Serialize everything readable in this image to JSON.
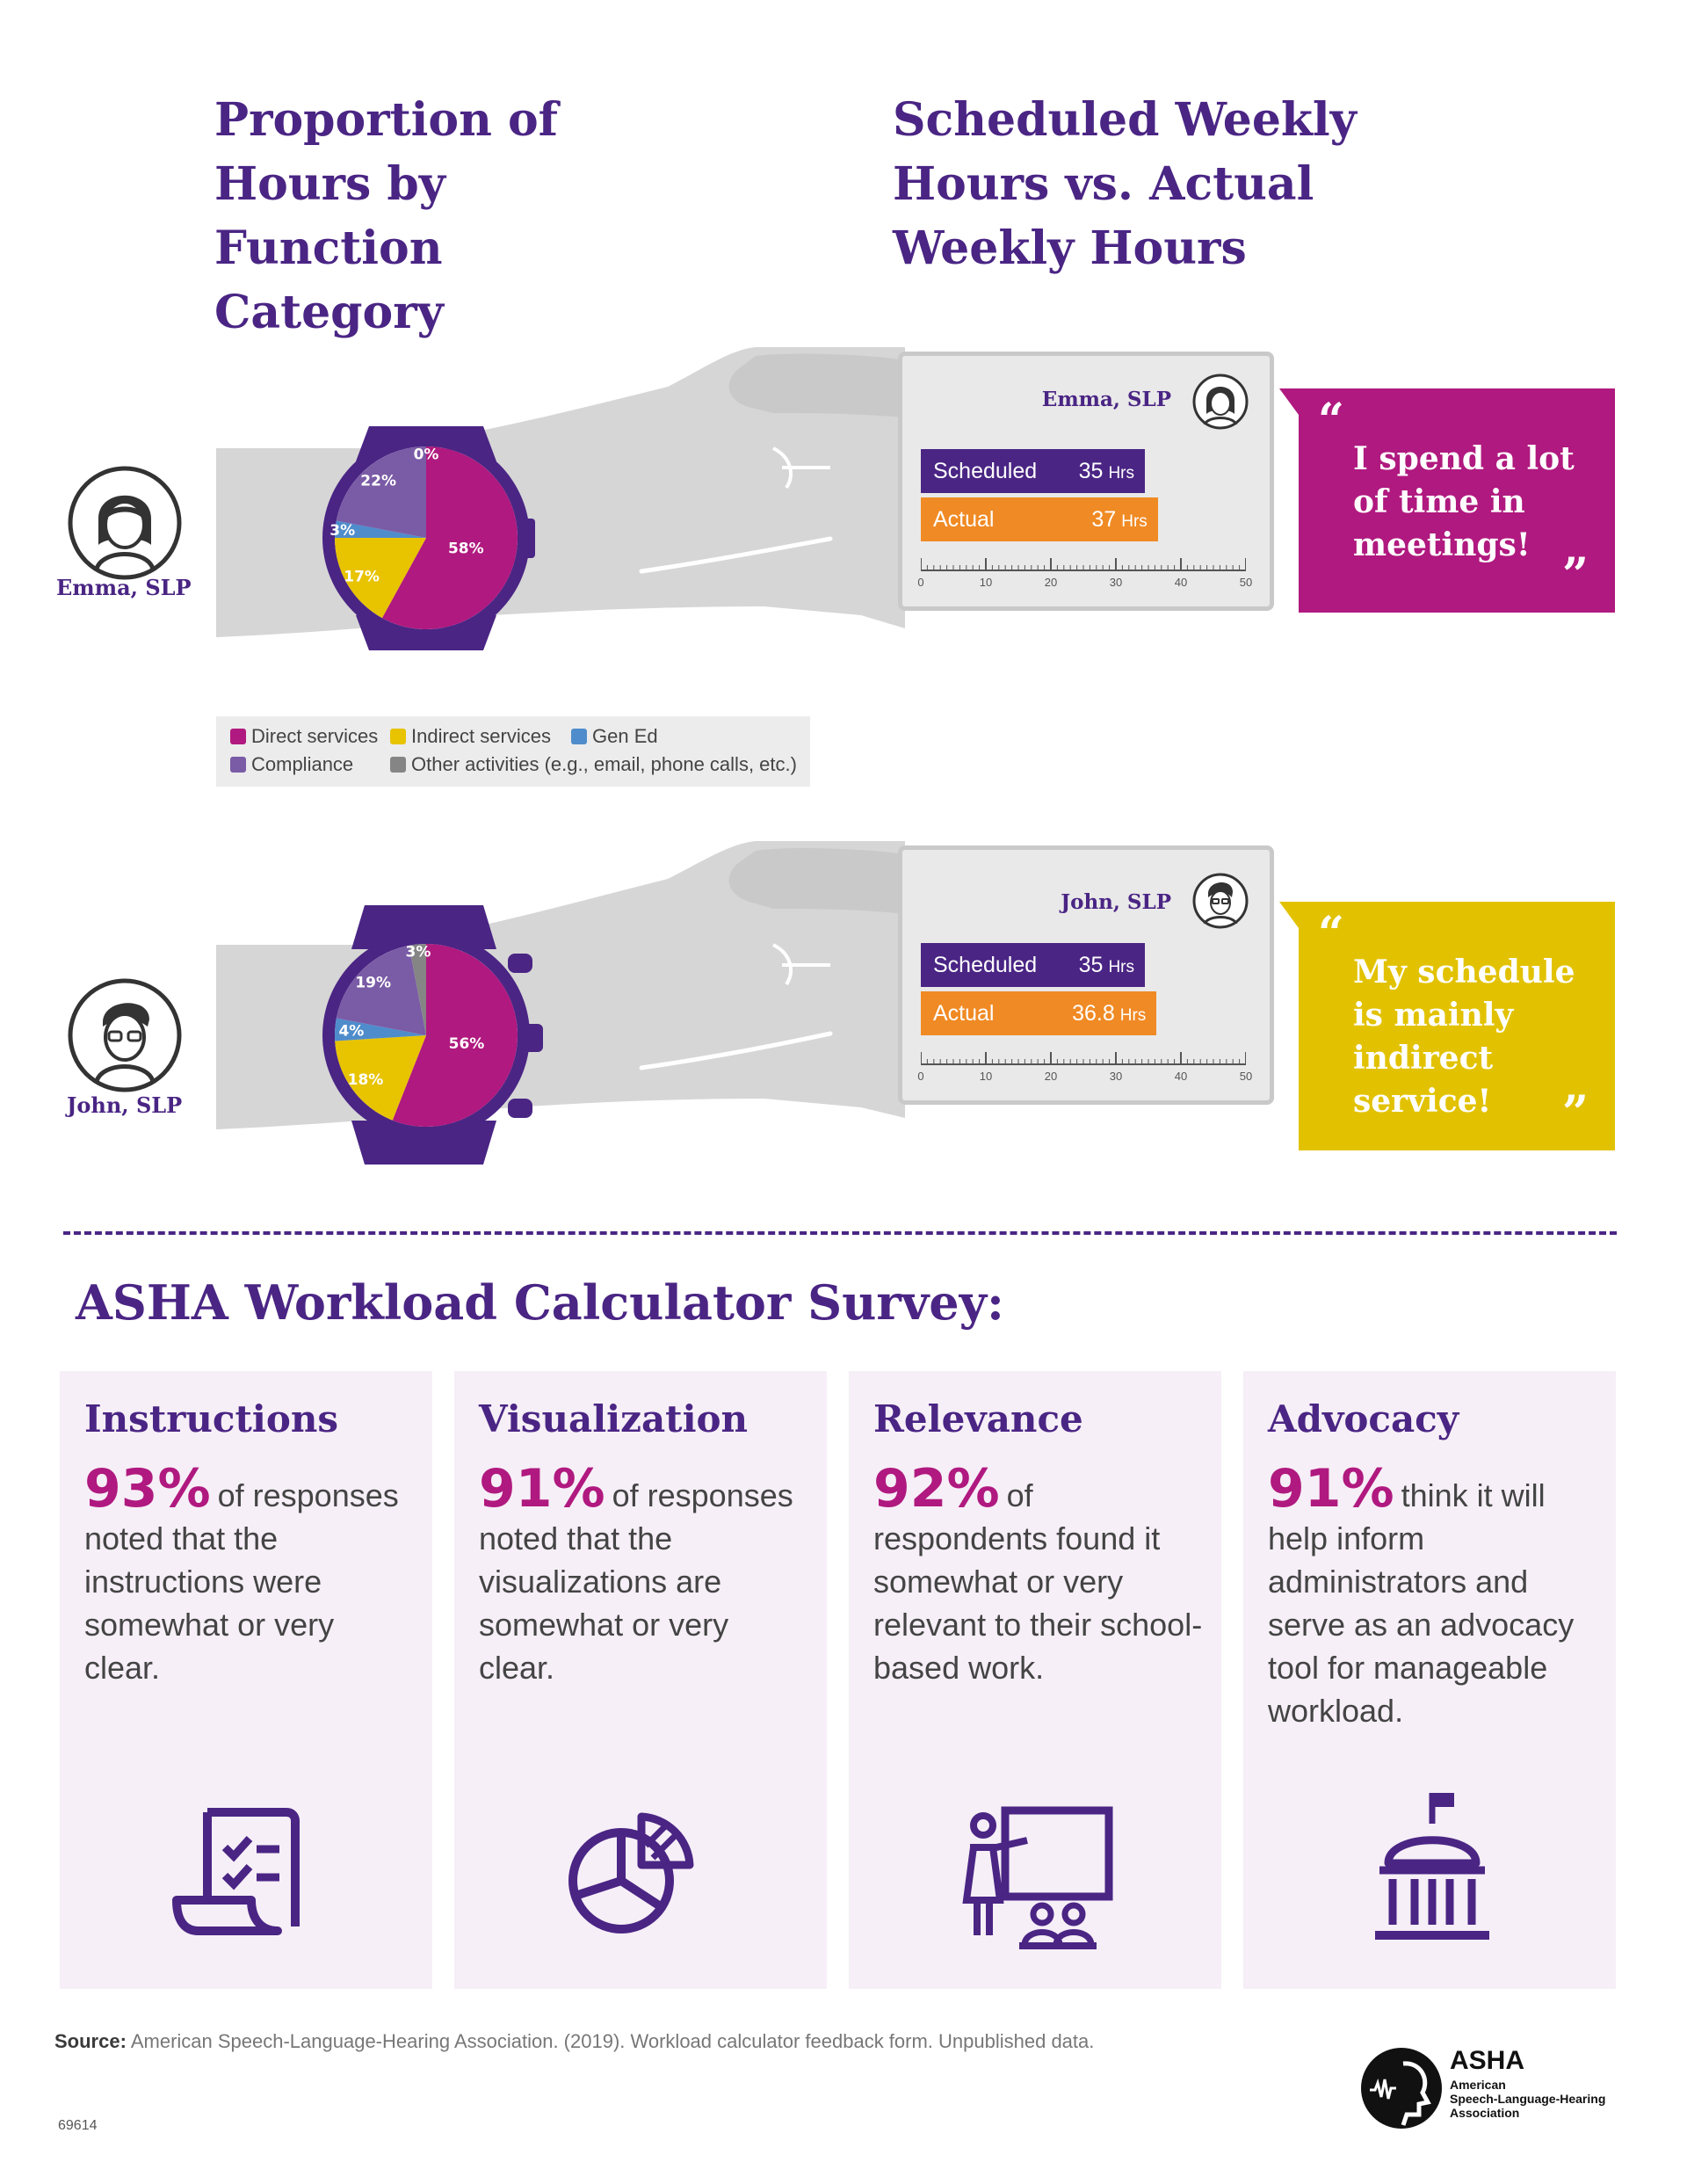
{
  "titles": {
    "left": "Proportion of Hours by Function Category",
    "right": "Scheduled Weekly Hours vs. Actual Weekly Hours"
  },
  "colors": {
    "purple": "#4a2584",
    "direct": "#b0197f",
    "indirect": "#e8c300",
    "gen_ed": "#4f8ccb",
    "compliance": "#7a5ba6",
    "other": "#858585",
    "scheduled_bar": "#4a2584",
    "actual_bar": "#f08a24",
    "emma_quote": "#b0197f",
    "john_quote": "#e2c200"
  },
  "legend": {
    "items": [
      {
        "label": "Direct services",
        "color": "#b0197f"
      },
      {
        "label": "Indirect services",
        "color": "#e8c300"
      },
      {
        "label": "Gen Ed",
        "color": "#4f8ccb"
      },
      {
        "label": "Compliance",
        "color": "#7a5ba6"
      },
      {
        "label": "Other activities (e.g., email, phone calls, etc.)",
        "color": "#858585"
      }
    ]
  },
  "people": [
    {
      "name": "Emma, SLP",
      "quote": "I spend a lot of time in meetings!",
      "icon": "woman-avatar-icon"
    },
    {
      "name": "John, SLP",
      "quote": "My schedule is mainly indirect service!",
      "icon": "man-avatar-icon"
    }
  ],
  "chart_data": [
    {
      "type": "pie",
      "title": "Proportion of Hours by Function Category",
      "person": "Emma, SLP",
      "slices": [
        {
          "label": "Direct services",
          "value": 58,
          "text": "58%"
        },
        {
          "label": "Indirect services",
          "value": 17,
          "text": "17%"
        },
        {
          "label": "Gen Ed",
          "value": 3,
          "text": "3%"
        },
        {
          "label": "Compliance",
          "value": 22,
          "text": "22%"
        },
        {
          "label": "Other activities (e.g., email, phone calls, etc.)",
          "value": 0,
          "text": "0%"
        }
      ]
    },
    {
      "type": "bar",
      "title": "Scheduled Weekly Hours vs. Actual Weekly Hours",
      "person": "Emma, SLP",
      "categories": [
        "Scheduled",
        "Actual"
      ],
      "values": [
        35,
        37
      ],
      "value_text": [
        "35",
        "37"
      ],
      "unit": "Hrs",
      "xlim": [
        0,
        50
      ],
      "ticks": [
        "0",
        "10",
        "20",
        "30",
        "40",
        "50"
      ]
    },
    {
      "type": "pie",
      "title": "Proportion of Hours by Function Category",
      "person": "John, SLP",
      "slices": [
        {
          "label": "Direct services",
          "value": 56,
          "text": "56%"
        },
        {
          "label": "Indirect services",
          "value": 18,
          "text": "18%"
        },
        {
          "label": "Gen Ed",
          "value": 4,
          "text": "4%"
        },
        {
          "label": "Compliance",
          "value": 19,
          "text": "19%"
        },
        {
          "label": "Other activities (e.g., email, phone calls, etc.)",
          "value": 3,
          "text": "3%"
        }
      ]
    },
    {
      "type": "bar",
      "title": "Scheduled Weekly Hours vs. Actual Weekly Hours",
      "person": "John, SLP",
      "categories": [
        "Scheduled",
        "Actual"
      ],
      "values": [
        35,
        36.8
      ],
      "value_text": [
        "35",
        "36.8"
      ],
      "unit": "Hrs",
      "xlim": [
        0,
        50
      ],
      "ticks": [
        "0",
        "10",
        "20",
        "30",
        "40",
        "50"
      ]
    }
  ],
  "survey": {
    "heading": "ASHA Workload Calculator Survey:",
    "cards": [
      {
        "title": "Instructions",
        "pct": "93%",
        "text": "of responses noted that the instructions were somewhat or very clear.",
        "icon": "checklist-icon"
      },
      {
        "title": "Visualization",
        "pct": "91%",
        "text": "of responses noted that the visualizations are somewhat or very clear.",
        "icon": "pie-chart-icon"
      },
      {
        "title": "Relevance",
        "pct": "92%",
        "text": "of respondents found it somewhat or very relevant to their school-based work.",
        "icon": "classroom-teacher-icon"
      },
      {
        "title": "Advocacy",
        "pct": "91%",
        "text": "think it will help inform administrators and serve as an advocacy tool for manageable workload.",
        "icon": "capitol-building-icon"
      }
    ]
  },
  "footer": {
    "source_label": "Source:",
    "source_text": "American Speech-Language-Hearing Association. (2019). Workload calculator feedback form. Unpublished data.",
    "code": "69614",
    "logo_name": "ASHA",
    "logo_sub1": "American",
    "logo_sub2": "Speech-Language-Hearing",
    "logo_sub3": "Association"
  }
}
